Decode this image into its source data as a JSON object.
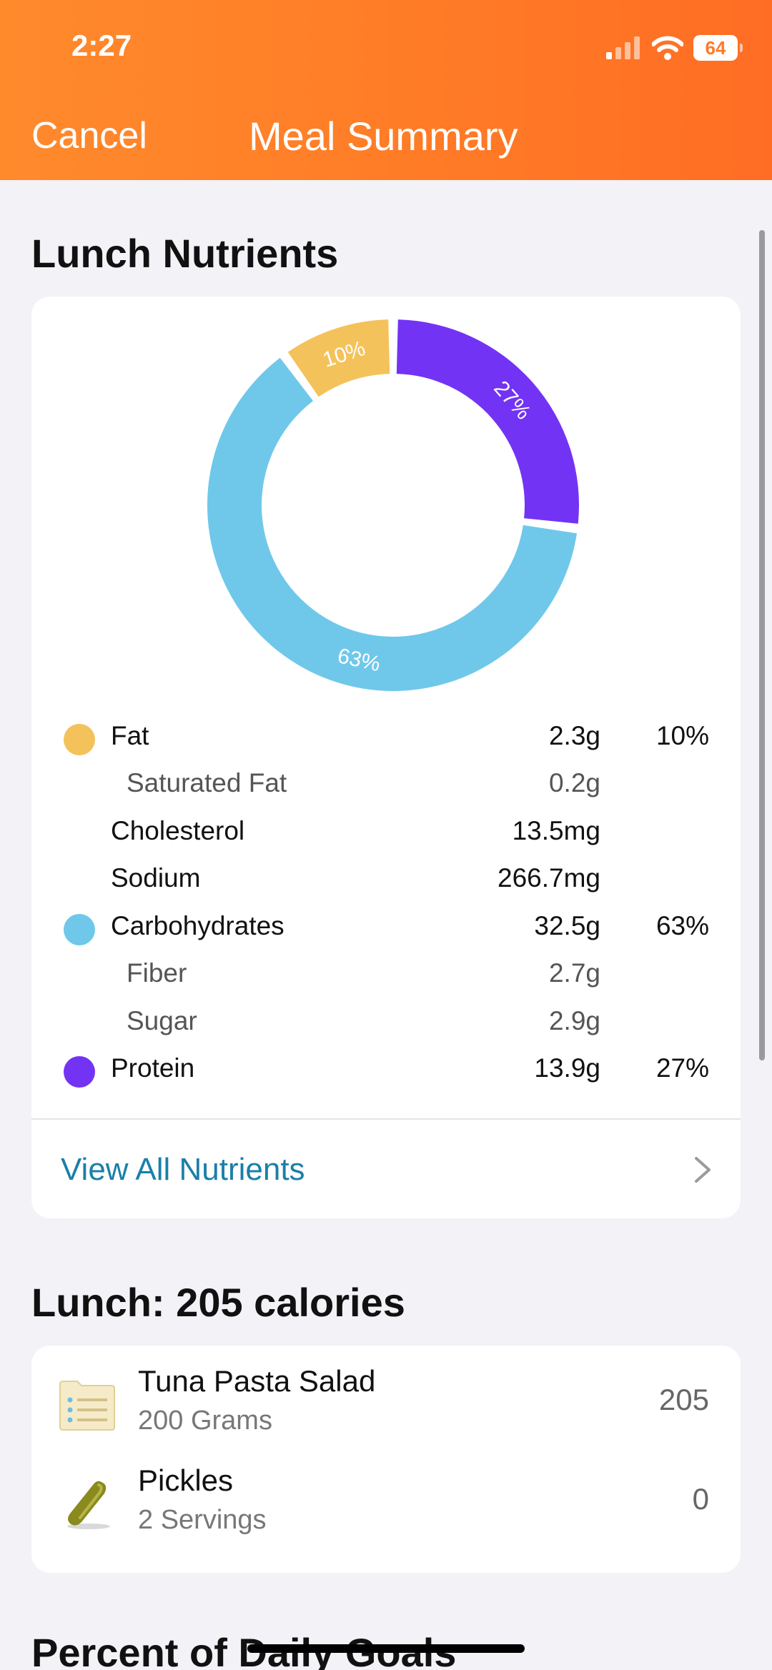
{
  "status": {
    "time": "2:27",
    "battery": "64"
  },
  "nav": {
    "cancel_label": "Cancel",
    "title": "Meal Summary"
  },
  "nutrients_section": {
    "title": "Lunch Nutrients"
  },
  "chart_data": {
    "type": "pie",
    "categories": [
      "Fat",
      "Carbohydrates",
      "Protein"
    ],
    "values": [
      10,
      63,
      27
    ],
    "labels": [
      "10%",
      "63%",
      "27%"
    ],
    "colors": [
      "#f4c25b",
      "#6fc8ea",
      "#7233f5"
    ],
    "title": ""
  },
  "nutrients": [
    {
      "label": "Fat",
      "amount": "2.3g",
      "pct": "10%",
      "color": "#f4c25b",
      "sub": false
    },
    {
      "label": "Saturated Fat",
      "amount": "0.2g",
      "pct": "",
      "color": "",
      "sub": true
    },
    {
      "label": "Cholesterol",
      "amount": "13.5mg",
      "pct": "",
      "color": "",
      "sub": false
    },
    {
      "label": "Sodium",
      "amount": "266.7mg",
      "pct": "",
      "color": "",
      "sub": false
    },
    {
      "label": "Carbohydrates",
      "amount": "32.5g",
      "pct": "63%",
      "color": "#6fc8ea",
      "sub": false
    },
    {
      "label": "Fiber",
      "amount": "2.7g",
      "pct": "",
      "color": "",
      "sub": true
    },
    {
      "label": "Sugar",
      "amount": "2.9g",
      "pct": "",
      "color": "",
      "sub": true
    },
    {
      "label": "Protein",
      "amount": "13.9g",
      "pct": "27%",
      "color": "#7233f5",
      "sub": false
    }
  ],
  "view_all": {
    "label": "View All Nutrients"
  },
  "meal": {
    "title": "Lunch: 205 calories",
    "items": [
      {
        "name": "Tuna Pasta Salad",
        "qty": "200 Grams",
        "calories": "205",
        "icon": "recipe-card-icon"
      },
      {
        "name": "Pickles",
        "qty": "2 Servings",
        "calories": "0",
        "icon": "pickle-icon"
      }
    ]
  },
  "goals_section": {
    "title": "Percent of Daily Goals"
  }
}
